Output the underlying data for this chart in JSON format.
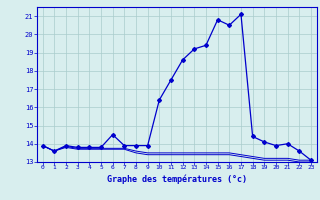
{
  "hours": [
    0,
    1,
    2,
    3,
    4,
    5,
    6,
    7,
    8,
    9,
    10,
    11,
    12,
    13,
    14,
    15,
    16,
    17,
    18,
    19,
    20,
    21,
    22,
    23
  ],
  "temp_main": [
    13.9,
    13.6,
    13.9,
    13.8,
    13.8,
    13.8,
    14.5,
    13.9,
    13.9,
    13.9,
    16.4,
    17.5,
    18.6,
    19.2,
    19.4,
    20.8,
    20.5,
    21.1,
    14.4,
    14.1,
    13.9,
    14.0,
    13.6,
    13.1
  ],
  "temp_low": [
    13.9,
    13.6,
    13.8,
    13.7,
    13.7,
    13.7,
    13.7,
    13.7,
    13.5,
    13.4,
    13.4,
    13.4,
    13.4,
    13.4,
    13.4,
    13.4,
    13.4,
    13.3,
    13.2,
    13.1,
    13.1,
    13.1,
    13.0,
    13.0
  ],
  "temp_mid": [
    13.9,
    13.6,
    13.85,
    13.75,
    13.75,
    13.75,
    13.75,
    13.75,
    13.6,
    13.5,
    13.5,
    13.5,
    13.5,
    13.5,
    13.5,
    13.5,
    13.5,
    13.4,
    13.3,
    13.2,
    13.2,
    13.2,
    13.1,
    13.1
  ],
  "xlim": [
    -0.5,
    23.5
  ],
  "ylim": [
    13,
    21.5
  ],
  "yticks": [
    13,
    14,
    15,
    16,
    17,
    18,
    19,
    20,
    21
  ],
  "xticks": [
    0,
    1,
    2,
    3,
    4,
    5,
    6,
    7,
    8,
    9,
    10,
    11,
    12,
    13,
    14,
    15,
    16,
    17,
    18,
    19,
    20,
    21,
    22,
    23
  ],
  "xlabel": "Graphe des températures (°c)",
  "line_color": "#0000cc",
  "bg_color": "#d8eeee",
  "grid_color": "#aacccc",
  "marker": "D",
  "marker_size": 2.0
}
